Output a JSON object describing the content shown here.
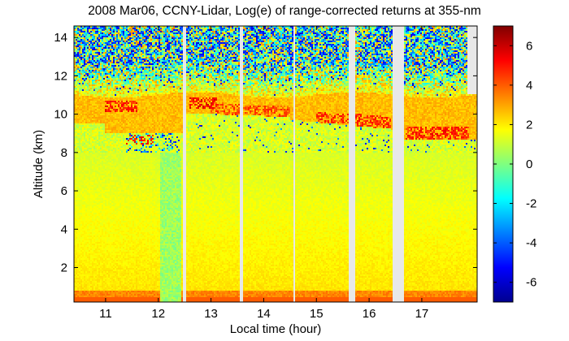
{
  "chart_data": {
    "type": "heatmap",
    "title": "2008 Mar06, CCNY-Lidar, Log(e) of range-corrected returns at 355-nm",
    "xlabel": "Local time (hour)",
    "ylabel": "Altitude (km)",
    "xlim": [
      10.4,
      18.05
    ],
    "ylim": [
      0.2,
      14.6
    ],
    "x_ticks": [
      11,
      12,
      13,
      14,
      15,
      16,
      17
    ],
    "y_ticks": [
      2,
      4,
      6,
      8,
      10,
      12,
      14
    ],
    "colorbar": {
      "range": [
        -7,
        7
      ],
      "ticks": [
        -6,
        -4,
        -2,
        0,
        2,
        4,
        6
      ],
      "colormap": "jet"
    },
    "data_gaps_hours": [
      [
        12.47,
        12.52
      ],
      [
        13.55,
        13.6
      ],
      [
        14.55,
        14.6
      ],
      [
        15.6,
        15.74
      ],
      [
        16.45,
        16.66
      ]
    ],
    "cloud_layer_km": {
      "bottom": 8.6,
      "top": 11.1
    },
    "boundary_layer_km": {
      "top": 0.8
    }
  }
}
